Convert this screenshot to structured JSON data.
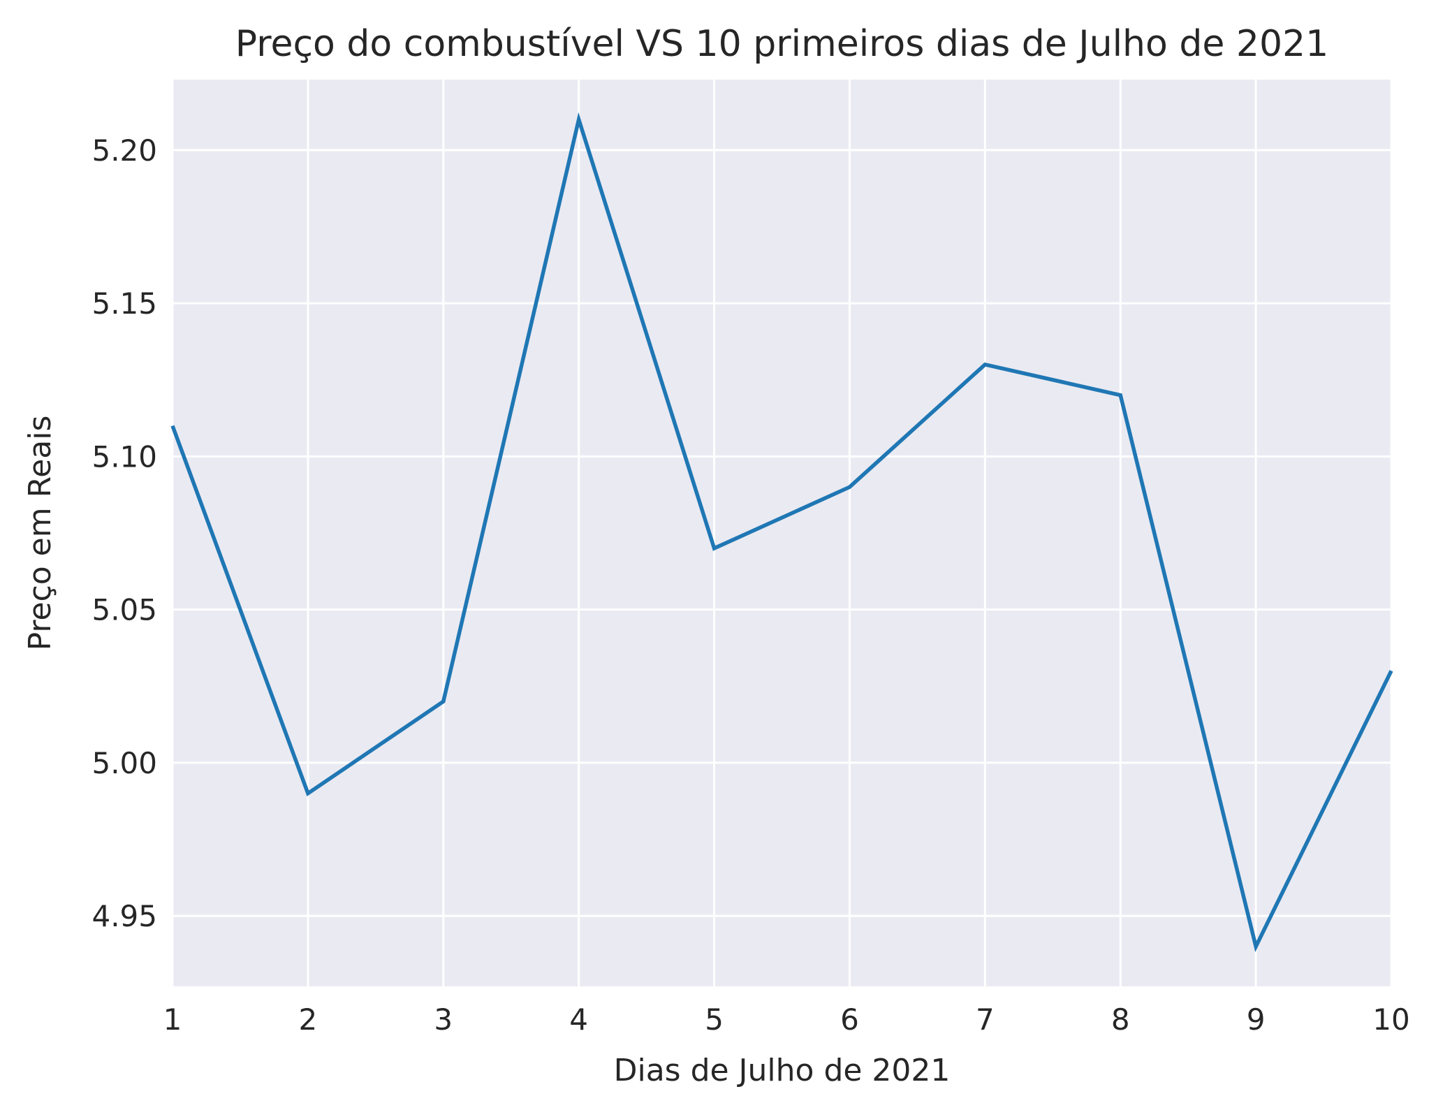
{
  "chart_data": {
    "type": "line",
    "title": "Preço do combustível VS 10 primeiros dias de Julho de 2021",
    "xlabel": "Dias de Julho de 2021",
    "ylabel": "Preço em Reais",
    "x": [
      1,
      2,
      3,
      4,
      5,
      6,
      7,
      8,
      9,
      10
    ],
    "series": [
      {
        "name": "",
        "values": [
          5.11,
          4.99,
          5.02,
          5.21,
          5.07,
          5.09,
          5.13,
          5.12,
          4.94,
          5.03
        ],
        "color": "#1f77b4"
      }
    ],
    "xlim": [
      1,
      10
    ],
    "ylim": [
      4.927,
      5.223
    ],
    "xticks": [
      1,
      2,
      3,
      4,
      5,
      6,
      7,
      8,
      9,
      10
    ],
    "xtick_labels": [
      "1",
      "2",
      "3",
      "4",
      "5",
      "6",
      "7",
      "8",
      "9",
      "10"
    ],
    "yticks": [
      4.95,
      5.0,
      5.05,
      5.1,
      5.15,
      5.2
    ],
    "ytick_labels": [
      "4.95",
      "5.00",
      "5.05",
      "5.10",
      "5.15",
      "5.20"
    ],
    "grid": true,
    "legend": "none",
    "colors": {
      "plot_background": "#eaeaf2",
      "grid": "#ffffff",
      "line": "#1f77b4",
      "text": "#262626"
    }
  }
}
